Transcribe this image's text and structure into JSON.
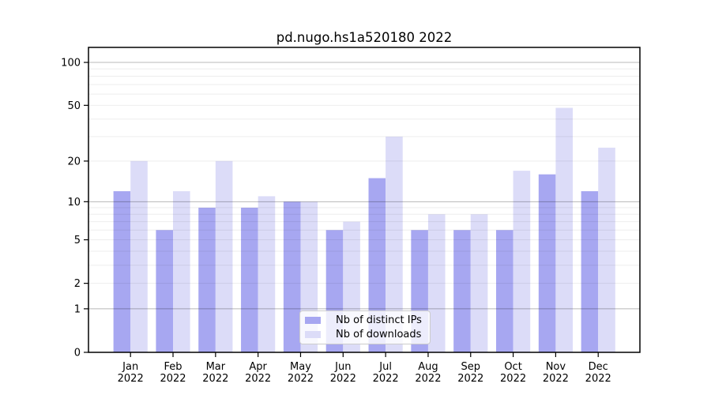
{
  "title": "pd.nugo.hs1a520180 2022",
  "legend": {
    "position": "lower center",
    "items": [
      {
        "label": "Nb of distinct IPs",
        "color": "#a7a7f1"
      },
      {
        "label": "Nb of downloads",
        "color": "#dcdcf8"
      }
    ]
  },
  "chart_data": {
    "type": "bar",
    "title": "pd.nugo.hs1a520180 2022",
    "xlabel": "",
    "ylabel": "",
    "categories": [
      "Jan 2022",
      "Feb 2022",
      "Mar 2022",
      "Apr 2022",
      "May 2022",
      "Jun 2022",
      "Jul 2022",
      "Aug 2022",
      "Sep 2022",
      "Oct 2022",
      "Nov 2022",
      "Dec 2022"
    ],
    "series": [
      {
        "name": "Nb of distinct IPs",
        "color": "#a7a7f1",
        "values": [
          12,
          6,
          9,
          9,
          10,
          6,
          15,
          6,
          6,
          6,
          16,
          12
        ]
      },
      {
        "name": "Nb of downloads",
        "color": "#dcdcf8",
        "values": [
          20,
          12,
          20,
          11,
          10,
          7,
          30,
          8,
          8,
          17,
          48,
          25
        ]
      }
    ],
    "y_scale": "log1p",
    "ylim": [
      0,
      128
    ],
    "y_ticks": [
      0,
      1,
      2,
      5,
      10,
      20,
      50,
      100
    ],
    "y_major_grid": [
      1,
      10,
      100
    ],
    "y_minor_grid": [
      2,
      3,
      4,
      5,
      6,
      7,
      8,
      9,
      20,
      30,
      40,
      50,
      60,
      70,
      80,
      90
    ],
    "grid": true,
    "legend_position": "lower center"
  },
  "colors": {
    "background": "#ffffff",
    "axis": "#000000",
    "text": "#000000",
    "grid_major": "rgba(0,0,0,0.28)",
    "grid_minor": "rgba(0,0,0,0.07)"
  }
}
